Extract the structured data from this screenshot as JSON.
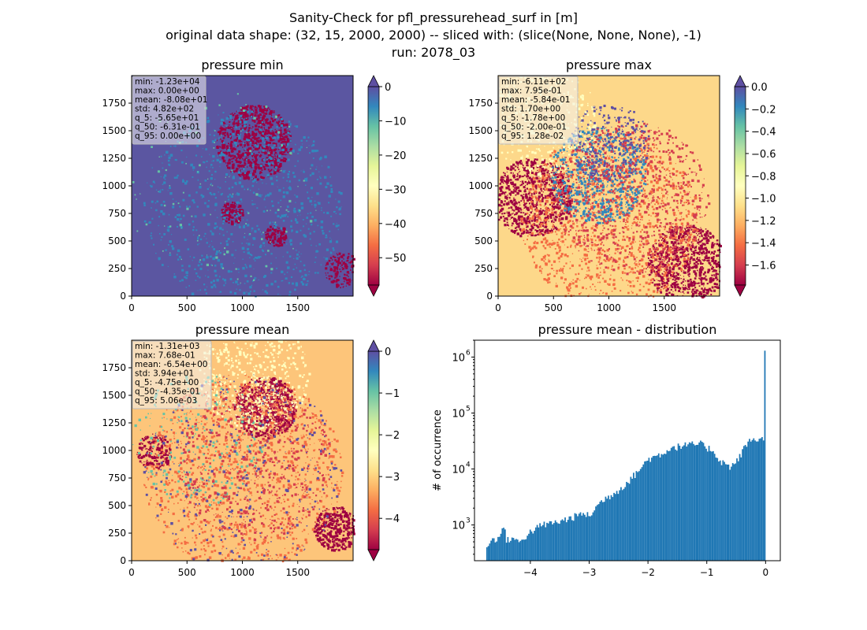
{
  "figure": {
    "title_lines": [
      "Sanity-Check for pfl_pressurehead_surf in [m]",
      "original data shape: (32, 15, 2000, 2000) -- sliced with: (slice(None, None, None), -1)",
      "run: 2078_03"
    ]
  },
  "colors": {
    "spectral": [
      "#9e0142",
      "#d53e4f",
      "#f46d43",
      "#fdae61",
      "#fee08b",
      "#ffffbf",
      "#e6f598",
      "#abdda4",
      "#66c2a5",
      "#3288bd",
      "#5e4fa2"
    ],
    "hist_bar": "#1f77b4"
  },
  "chart_data": [
    {
      "type": "heatmap",
      "title": "pressure min",
      "xlim": [
        0,
        2000
      ],
      "ylim": [
        0,
        2000
      ],
      "xticks": [
        "0",
        "500",
        "1000",
        "1500"
      ],
      "yticks": [
        "0",
        "250",
        "500",
        "750",
        "1000",
        "1250",
        "1500",
        "1750"
      ],
      "colorbar": {
        "range": [
          -58,
          0
        ],
        "ticks": [
          "0",
          "−10",
          "−20",
          "−30",
          "−40",
          "−50"
        ],
        "ticks_values": [
          0,
          -10,
          -20,
          -30,
          -40,
          -50
        ],
        "extend_low": true,
        "extend_high": true
      },
      "stats": [
        "min: -1.23e+04",
        "max: 0.00e+00",
        "mean: -8.08e+01",
        "std: 4.82e+02",
        "q_5: -5.65e+01",
        "q_50: -6.31e-01",
        "q_95: 0.00e+00"
      ],
      "base_color": "#5b56a1"
    },
    {
      "type": "heatmap",
      "title": "pressure max",
      "xlim": [
        0,
        2000
      ],
      "ylim": [
        0,
        2000
      ],
      "xticks": [
        "0",
        "500",
        "1000",
        "1500"
      ],
      "yticks": [
        "0",
        "250",
        "500",
        "750",
        "1000",
        "1250",
        "1500",
        "1750"
      ],
      "colorbar": {
        "range": [
          -1.78,
          0
        ],
        "ticks": [
          "0.0",
          "−0.2",
          "−0.4",
          "−0.6",
          "−0.8",
          "−1.0",
          "−1.2",
          "−1.4",
          "−1.6"
        ],
        "ticks_values": [
          0,
          -0.2,
          -0.4,
          -0.6,
          -0.8,
          -1.0,
          -1.2,
          -1.4,
          -1.6
        ],
        "extend_low": true,
        "extend_high": true
      },
      "stats": [
        "min: -6.11e+02",
        "max: 7.95e-01",
        "mean: -5.84e-01",
        "std: 1.70e+00",
        "q_5: -1.78e+00",
        "q_50: -2.00e-01",
        "q_95: 1.28e-02"
      ],
      "base_color": "#fdd88a"
    },
    {
      "type": "heatmap",
      "title": "pressure mean",
      "xlim": [
        0,
        2000
      ],
      "ylim": [
        0,
        2000
      ],
      "xticks": [
        "0",
        "500",
        "1000",
        "1500"
      ],
      "yticks": [
        "0",
        "250",
        "500",
        "750",
        "1000",
        "1250",
        "1500",
        "1750"
      ],
      "colorbar": {
        "range": [
          -4.75,
          0
        ],
        "ticks": [
          "0",
          "−1",
          "−2",
          "−3",
          "−4"
        ],
        "ticks_values": [
          0,
          -1,
          -2,
          -3,
          -4
        ],
        "extend_low": true,
        "extend_high": true
      },
      "stats": [
        "min: -1.31e+03",
        "max: 7.68e-01",
        "mean: -6.54e+00",
        "std: 3.94e+01",
        "q_5: -4.75e+00",
        "q_50: -4.35e-01",
        "q_95: 5.06e-03"
      ],
      "base_color": "#fdc57a"
    },
    {
      "type": "bar",
      "title": "pressure mean - distribution",
      "xlabel": "",
      "ylabel": "# of occurrence",
      "xlim": [
        -4.95,
        0.25
      ],
      "ylim": [
        230,
        2000000
      ],
      "yscale": "log",
      "xticks": [
        "−4",
        "−3",
        "−2",
        "−1",
        "0"
      ],
      "xticks_values": [
        -4,
        -3,
        -2,
        -1,
        0
      ],
      "yticks": [
        "10",
        "10",
        "10",
        "10"
      ],
      "yticks_exponents": [
        "3",
        "4",
        "5",
        "6"
      ],
      "yticks_values": [
        1000,
        10000,
        100000,
        1000000
      ],
      "histogram": {
        "x_start": -4.75,
        "x_end": 0.0,
        "anchors_x": [
          -4.75,
          -4.7,
          -4.6,
          -4.5,
          -4.45,
          -4.4,
          -4.3,
          -4.2,
          -4.0,
          -3.8,
          -3.5,
          -3.3,
          -3.1,
          -3.0,
          -2.8,
          -2.5,
          -2.3,
          -2.1,
          -2.0,
          -1.8,
          -1.6,
          -1.4,
          -1.3,
          -1.1,
          -1.0,
          -0.9,
          -0.8,
          -0.7,
          -0.6,
          -0.5,
          -0.4,
          -0.3,
          -0.2,
          -0.1,
          -0.05,
          -0.01
        ],
        "anchors_y": [
          380,
          500,
          560,
          650,
          1000,
          520,
          600,
          480,
          750,
          1000,
          1150,
          1350,
          1600,
          1450,
          2600,
          4200,
          6500,
          11000,
          15000,
          18000,
          24000,
          26000,
          27000,
          28000,
          24000,
          22000,
          15000,
          12500,
          11000,
          13000,
          20000,
          30000,
          35000,
          33000,
          34000,
          36000
        ],
        "peak_value": 1300000
      }
    }
  ]
}
